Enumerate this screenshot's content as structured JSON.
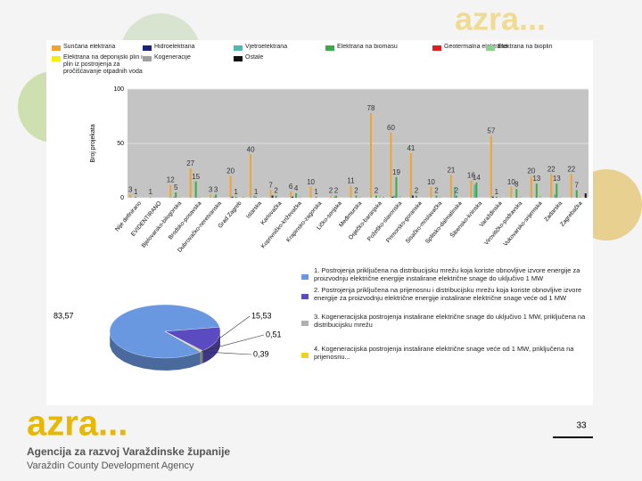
{
  "chart_data": [
    {
      "type": "bar",
      "ylabel": "Broj projekata",
      "categories": [
        "Nije definirano",
        "EVIDENTIRANO",
        "Bjelovarsko-bilogorska",
        "Brodsko-posavska",
        "Dubrovačko-neretvanska",
        "Grad Zagreb",
        "Istarska",
        "Karlovačka",
        "Koprivničko-križevačka",
        "Krapinsko-zagorska",
        "Ličko-senjska",
        "Međimurska",
        "Osječko-baranjska",
        "Požeško-slavonska",
        "Primorsko-goranska",
        "Sisačko-moslavačka",
        "Splitsko-dalmatinska",
        "Šibensko-kninska",
        "Varaždinska",
        "Virovitičko-podravska",
        "Vukovarsko-srijemska",
        "Zadarska",
        "Zagrebačka"
      ],
      "series": [
        {
          "name": "Sunčana elektrana",
          "color": "#f0a530",
          "show_value_labels": true,
          "values": [
            3,
            1,
            12,
            27,
            3,
            20,
            40,
            7,
            6,
            10,
            2,
            11,
            78,
            60,
            41,
            10,
            21,
            16,
            57,
            10,
            20,
            22,
            22
          ]
        },
        {
          "name": "Hidroelektrana",
          "color": "#1a237e",
          "values": [
            0,
            0,
            0,
            0,
            0,
            1,
            0,
            2,
            1,
            0,
            0,
            0,
            0,
            1,
            2,
            0,
            0,
            0,
            1,
            0,
            0,
            0,
            0
          ]
        },
        {
          "name": "Vjetroelektrana",
          "color": "#4fb8b0",
          "values": [
            0,
            0,
            1,
            0,
            1,
            0,
            2,
            0,
            0,
            0,
            1,
            0,
            0,
            2,
            0,
            0,
            10,
            12,
            0,
            0,
            0,
            3,
            0
          ]
        },
        {
          "name": "Elektrana na biomasu",
          "color": "#3caa4a",
          "show_value_labels": true,
          "values": [
            1,
            0,
            5,
            15,
            3,
            1,
            1,
            2,
            4,
            1,
            2,
            2,
            2,
            19,
            2,
            2,
            2,
            14,
            1,
            8,
            13,
            13,
            7
          ]
        },
        {
          "name": "Geotermalna elektrana",
          "color": "#e02020",
          "values": [
            0,
            0,
            0,
            0,
            0,
            0,
            0,
            0,
            0,
            0,
            0,
            0,
            0,
            0,
            0,
            0,
            0,
            0,
            0,
            0,
            0,
            0,
            0
          ]
        },
        {
          "name": "Elektrana na bioplin",
          "color": "#8ed08e",
          "values": [
            0,
            0,
            1,
            1,
            0,
            0,
            0,
            0,
            1,
            0,
            0,
            1,
            2,
            2,
            0,
            1,
            0,
            0,
            1,
            1,
            2,
            1,
            1
          ]
        },
        {
          "name": "Elektrana na deponijski plin i plin iz postrojenja za pročišćavanje otpadnih voda",
          "color": "#f5f000",
          "values": [
            0,
            0,
            0,
            0,
            0,
            1,
            0,
            0,
            0,
            0,
            0,
            0,
            0,
            0,
            0,
            0,
            0,
            0,
            0,
            0,
            0,
            0,
            1
          ]
        },
        {
          "name": "Kogeneracije",
          "color": "#a0a0a0",
          "values": [
            0,
            0,
            0,
            0,
            0,
            1,
            0,
            0,
            0,
            0,
            0,
            0,
            1,
            0,
            0,
            0,
            0,
            0,
            0,
            0,
            0,
            0,
            0
          ]
        },
        {
          "name": "Ostale",
          "color": "#111111",
          "values": [
            0,
            0,
            0,
            0,
            0,
            0,
            0,
            0,
            0,
            0,
            0,
            0,
            0,
            0,
            0,
            0,
            0,
            0,
            0,
            0,
            0,
            0,
            4
          ]
        }
      ],
      "ylim": [
        0,
        100
      ],
      "yticks": [
        0,
        50,
        100
      ],
      "grid": true
    },
    {
      "type": "pie",
      "categories": [
        "1. Postrojenja priključena na distribucijsku mrežu koja koriste obnovljive izvore energije za proizvodnju električne energije instalirane električne snage do uključivo 1 MW",
        "2. Postrojenja priključena na prijenosnu i distribucijsku mrežu koja koriste obnovljive izvore energije za proizvodnju električne energije instalirane električne snage veće od 1 MW",
        "3. Kogeneracijska postrojenja instalirane električne snage do uključivo 1 MW, priključena na distribucijsku mrežu",
        "4. Kogeneracijska postrojenja instalirane električne snage veće od 1 MW, priključena na prijenosnu..."
      ],
      "values": [
        83.57,
        15.53,
        0.51,
        0.39
      ],
      "value_labels": [
        "83,57",
        "15,53",
        "0,51",
        "0,39"
      ],
      "colors": [
        "#6a98e0",
        "#5a4cc0",
        "#b0b0b0",
        "#f0d020"
      ]
    }
  ],
  "slide": {
    "logo": "azra...",
    "agency_hr": "Agencija za razvoj Varaždinske županije",
    "agency_en": "Varaždin County Development Agency",
    "page_number": "33"
  }
}
